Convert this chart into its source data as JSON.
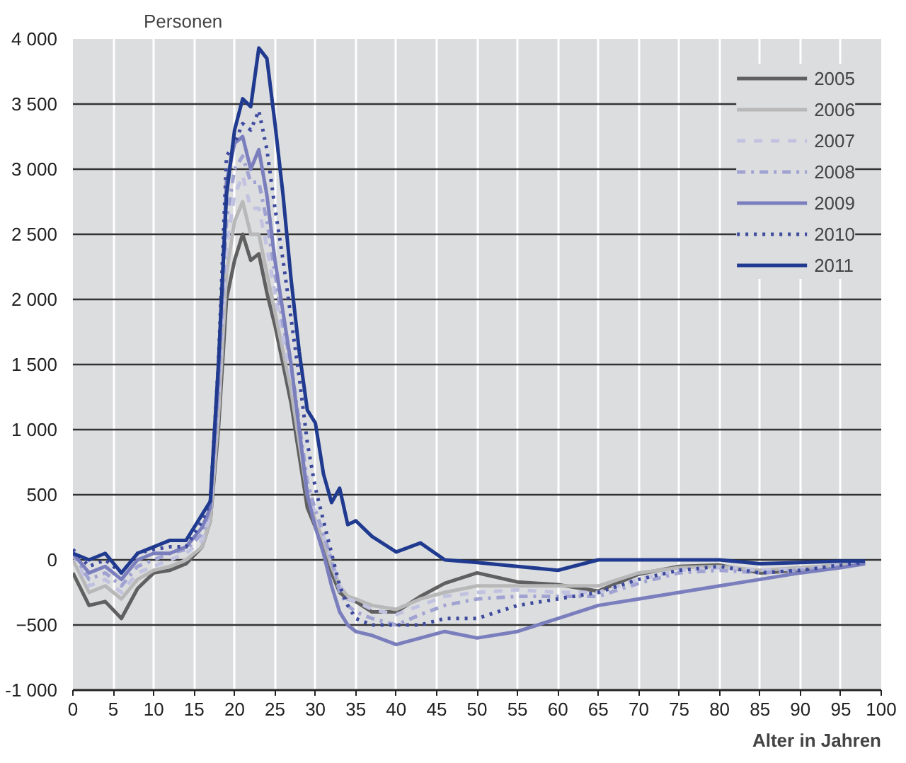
{
  "chart_data": {
    "type": "line",
    "ylabel": "Personen",
    "xlabel": "Alter in Jahren",
    "x": [
      0,
      2,
      4,
      6,
      8,
      10,
      12,
      14,
      16,
      17,
      18,
      19,
      20,
      21,
      22,
      23,
      24,
      25,
      26,
      27,
      28,
      29,
      30,
      31,
      32,
      33,
      34,
      35,
      37,
      40,
      43,
      46,
      50,
      55,
      60,
      65,
      70,
      75,
      80,
      85,
      90,
      95,
      98
    ],
    "xlim": [
      0,
      100
    ],
    "ylim": [
      -1000,
      4000
    ],
    "xticks": [
      0,
      5,
      10,
      15,
      20,
      25,
      30,
      35,
      40,
      45,
      50,
      55,
      60,
      65,
      70,
      75,
      80,
      85,
      90,
      95,
      100
    ],
    "yticks": [
      {
        "value": -1000,
        "label": "-1 000"
      },
      -500,
      0,
      500,
      {
        "value": 1000,
        "label": "1 000"
      },
      {
        "value": 1500,
        "label": "1 500"
      },
      {
        "value": 2000,
        "label": "2 000"
      },
      {
        "value": 2500,
        "label": "2 500"
      },
      {
        "value": 3000,
        "label": "3 000"
      },
      {
        "value": 3500,
        "label": "3 500"
      },
      {
        "value": 4000,
        "label": "4 000"
      }
    ],
    "grid": true,
    "legend": "top right",
    "marker": "none",
    "series": [
      {
        "name": "2005",
        "color": "#606060",
        "line_style": "solid",
        "values": [
          -100,
          -350,
          -320,
          -450,
          -220,
          -100,
          -80,
          -30,
          100,
          300,
          1000,
          2000,
          2300,
          2500,
          2300,
          2350,
          2050,
          1800,
          1500,
          1200,
          800,
          400,
          250,
          100,
          -100,
          -250,
          -300,
          -320,
          -400,
          -400,
          -280,
          -180,
          -100,
          -170,
          -190,
          -240,
          -110,
          -50,
          -40,
          -100,
          -80,
          -50,
          -20
        ]
      },
      {
        "name": "2006",
        "color": "#b8b8b8",
        "line_style": "solid",
        "values": [
          0,
          -250,
          -200,
          -300,
          -150,
          -80,
          -50,
          0,
          100,
          300,
          1100,
          2200,
          2600,
          2750,
          2500,
          2500,
          2200,
          1900,
          1600,
          1300,
          900,
          500,
          300,
          150,
          -50,
          -200,
          -280,
          -300,
          -350,
          -380,
          -300,
          -250,
          -200,
          -200,
          -200,
          -200,
          -100,
          -60,
          -50,
          -80,
          -60,
          -40,
          -20
        ]
      },
      {
        "name": "2007",
        "color": "#c0c2e0",
        "line_style": "dashed",
        "values": [
          50,
          -200,
          -150,
          -250,
          -100,
          -50,
          0,
          50,
          150,
          350,
          1200,
          2400,
          2800,
          2950,
          2700,
          2700,
          2400,
          2050,
          1700,
          1400,
          1000,
          550,
          350,
          180,
          0,
          -200,
          -300,
          -320,
          -380,
          -420,
          -350,
          -280,
          -250,
          -230,
          -250,
          -250,
          -150,
          -80,
          -60,
          -80,
          -70,
          -40,
          -20
        ]
      },
      {
        "name": "2008",
        "color": "#a0a3d2",
        "line_style": "dashdot",
        "values": [
          50,
          -150,
          -100,
          -200,
          -50,
          0,
          50,
          80,
          200,
          400,
          1300,
          2600,
          3000,
          3100,
          2900,
          2900,
          2600,
          2200,
          1800,
          1500,
          1050,
          600,
          380,
          200,
          0,
          -250,
          -350,
          -400,
          -450,
          -500,
          -420,
          -350,
          -300,
          -280,
          -280,
          -280,
          -180,
          -100,
          -80,
          -100,
          -80,
          -50,
          -20
        ]
      },
      {
        "name": "2009",
        "color": "#7a7ebd",
        "line_style": "solid",
        "values": [
          50,
          -100,
          -50,
          -150,
          0,
          50,
          50,
          100,
          250,
          400,
          1400,
          2900,
          3200,
          3250,
          3000,
          3150,
          2800,
          2300,
          1900,
          1500,
          1000,
          500,
          250,
          50,
          -200,
          -400,
          -500,
          -550,
          -580,
          -650,
          -600,
          -550,
          -600,
          -550,
          -450,
          -350,
          -300,
          -250,
          -200,
          -150,
          -100,
          -60,
          -30
        ]
      },
      {
        "name": "2010",
        "color": "#3d4a9e",
        "line_style": "dotted",
        "values": [
          80,
          -50,
          0,
          -100,
          50,
          80,
          100,
          100,
          300,
          450,
          1500,
          3100,
          3200,
          3350,
          3300,
          3450,
          3150,
          2700,
          2300,
          1850,
          1400,
          900,
          550,
          300,
          50,
          -200,
          -350,
          -450,
          -500,
          -500,
          -500,
          -450,
          -450,
          -350,
          -300,
          -250,
          -150,
          -80,
          -50,
          -100,
          -80,
          -40,
          -20
        ]
      },
      {
        "name": "2011",
        "color": "#1f3a8f",
        "line_style": "solid",
        "values": [
          50,
          0,
          50,
          -100,
          50,
          100,
          150,
          150,
          350,
          450,
          1500,
          2800,
          3300,
          3540,
          3480,
          3930,
          3850,
          3350,
          2800,
          2150,
          1600,
          1150,
          1050,
          660,
          440,
          550,
          270,
          300,
          180,
          60,
          130,
          0,
          -20,
          -50,
          -80,
          0,
          0,
          0,
          0,
          -30,
          -20,
          -10,
          -10
        ]
      }
    ]
  }
}
